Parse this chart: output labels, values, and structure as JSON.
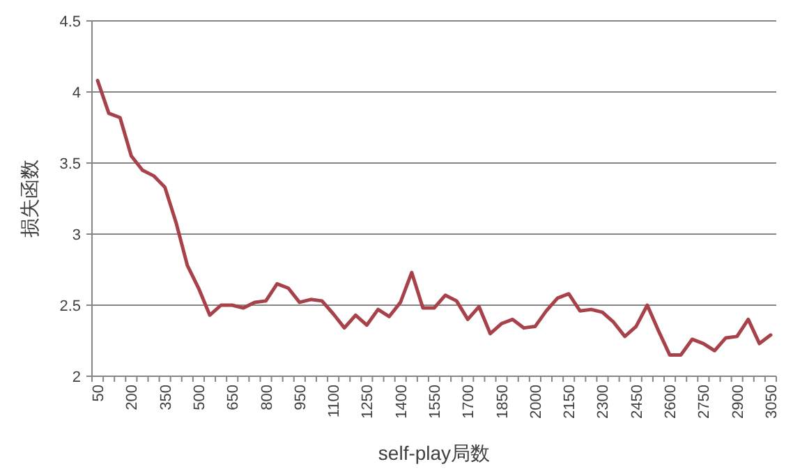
{
  "chart_data": {
    "type": "line",
    "xlabel": "self-play局数",
    "ylabel": "损失函数",
    "categories": [
      "50",
      null,
      null,
      "200",
      null,
      null,
      "350",
      null,
      null,
      "500",
      null,
      null,
      "650",
      null,
      null,
      "800",
      null,
      null,
      "950",
      null,
      null,
      "1100",
      null,
      null,
      "1250",
      null,
      null,
      "1400",
      null,
      null,
      "1550",
      null,
      null,
      "1700",
      null,
      null,
      "1850",
      null,
      null,
      "2000",
      null,
      null,
      "2150",
      null,
      null,
      "2300",
      null,
      null,
      "2450",
      null,
      null,
      "2600",
      null,
      null,
      "2750",
      null,
      null,
      "2900",
      null,
      null,
      "3050"
    ],
    "series": [
      {
        "color": "#a8424a",
        "values": [
          4.08,
          3.85,
          3.82,
          3.55,
          3.45,
          3.41,
          3.33,
          3.08,
          2.78,
          2.62,
          2.43,
          2.5,
          2.5,
          2.48,
          2.52,
          2.53,
          2.65,
          2.62,
          2.52,
          2.54,
          2.53,
          2.44,
          2.34,
          2.43,
          2.36,
          2.47,
          2.42,
          2.52,
          2.73,
          2.48,
          2.48,
          2.57,
          2.53,
          2.4,
          2.49,
          2.3,
          2.37,
          2.4,
          2.34,
          2.35,
          2.46,
          2.55,
          2.58,
          2.46,
          2.47,
          2.45,
          2.38,
          2.28,
          2.35,
          2.5,
          2.32,
          2.15,
          2.15,
          2.26,
          2.23,
          2.18,
          2.27,
          2.28,
          2.4,
          2.23,
          2.29
        ]
      }
    ],
    "ylim": [
      2,
      4.5
    ],
    "yticks": [
      2,
      2.5,
      3,
      3.5,
      4,
      4.5
    ],
    "grid": "y",
    "marker": "none",
    "line_style": "solid"
  }
}
